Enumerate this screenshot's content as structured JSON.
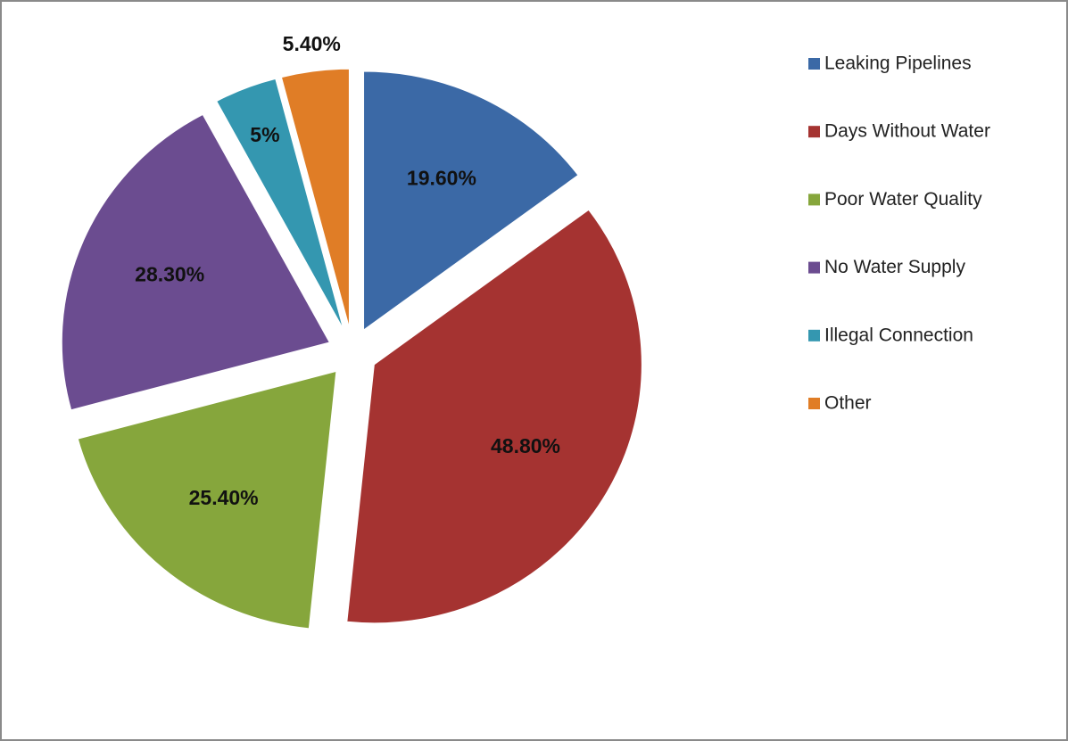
{
  "chart_data": {
    "type": "pie",
    "categories": [
      "Leaking Pipelines",
      "Days Without Water",
      "Poor Water Quality",
      "No Water Supply",
      "Illegal Connection",
      "Other"
    ],
    "values": [
      19.6,
      48.8,
      25.4,
      28.3,
      5,
      5.4
    ],
    "value_labels": [
      "19.60%",
      "48.80%",
      "25.40%",
      "28.30%",
      "5%",
      "5.40%"
    ],
    "colors": [
      "#3b69a6",
      "#a53331",
      "#86a63c",
      "#6b4c90",
      "#3497b0",
      "#e07d26"
    ],
    "legend": "right"
  }
}
